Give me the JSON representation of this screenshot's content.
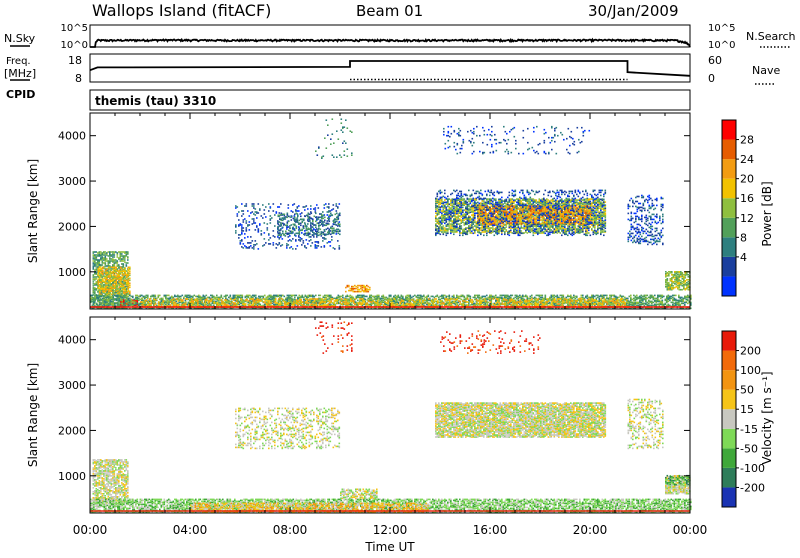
{
  "header": {
    "station": "Wallops Island (fitACF)",
    "beam": "Beam 01",
    "date": "30/Jan/2009"
  },
  "top_panels": {
    "noise": {
      "left_label": "N.Sky",
      "right_label": "N.Search",
      "left_ticks": [
        "10^5",
        "10^0"
      ],
      "right_ticks": [
        "10^5",
        "10^0"
      ]
    },
    "freq": {
      "left_label_1": "Freq.",
      "left_label_2": "[MHz]",
      "right_label": "Nave",
      "left_ticks": [
        "18",
        "8"
      ],
      "right_ticks": [
        "60",
        "0"
      ],
      "cpid_label": "CPID"
    },
    "cpid": {
      "text": "themis (tau) 3310"
    }
  },
  "panels": {
    "power": {
      "ylabel": "Slant Range [km]",
      "colorbar_label": "Power [dB]",
      "colorbar_ticks": [
        "28",
        "24",
        "20",
        "16",
        "12",
        "8",
        "4"
      ],
      "colors": [
        "#0033ff",
        "#1a3f9e",
        "#2e7f7f",
        "#52a05a",
        "#8fbf3f",
        "#f2c200",
        "#f39c12",
        "#e65c00",
        "#ff0000"
      ]
    },
    "velocity": {
      "ylabel": "Slant Range [km]",
      "colorbar_label": "Velocity [m s⁻¹]",
      "colorbar_ticks": [
        "200",
        "100",
        "50",
        "15",
        "-15",
        "-50",
        "-100",
        "-200"
      ],
      "colors": [
        "#1a33b3",
        "#2e7d5a",
        "#3fa83a",
        "#7ed957",
        "#c8c8c0",
        "#f5c418",
        "#f29412",
        "#f26a0a",
        "#e81a0a"
      ]
    }
  },
  "chart_data": [
    {
      "type": "line",
      "name": "noise",
      "x_range": [
        0,
        24
      ],
      "y_scale": "log",
      "y_range": [
        1,
        100000
      ],
      "series": [
        {
          "name": "N.Sky",
          "values_x": [
            0.0,
            0.2,
            0.3,
            1,
            3,
            6,
            9,
            12,
            15,
            18,
            21,
            23.4,
            24.0
          ],
          "values_y": [
            1,
            1,
            30,
            30,
            35,
            30,
            32,
            30,
            31,
            32,
            33,
            30,
            1
          ]
        }
      ]
    },
    {
      "type": "line",
      "name": "freq_nave",
      "x_range": [
        0,
        24
      ],
      "y_range": [
        8,
        18
      ],
      "series": [
        {
          "name": "Freq.",
          "values_x": [
            0.0,
            0.3,
            10.4,
            10.4,
            21.5,
            21.5,
            24.0
          ],
          "values_y": [
            12.2,
            13.2,
            13.4,
            15.5,
            15.5,
            11.5,
            10.2
          ]
        },
        {
          "name": "Nave",
          "values_x": [
            10.4,
            21.5
          ],
          "values_y": [
            8.9,
            8.9
          ]
        }
      ]
    },
    {
      "type": "heatmap",
      "name": "power",
      "x_range": [
        0,
        24
      ],
      "y_range": [
        180,
        4500
      ],
      "xticks": [
        "00:00",
        "04:00",
        "08:00",
        "12:00",
        "16:00",
        "20:00",
        "00:00"
      ],
      "yticks": [
        "1000",
        "2000",
        "3000",
        "4000"
      ],
      "ytick_values": [
        1000,
        2000,
        3000,
        4000
      ],
      "regions": [
        {
          "t": [
            0.1,
            1.5
          ],
          "r": [
            200,
            1450
          ],
          "level": 3,
          "density": 0.55
        },
        {
          "t": [
            0.3,
            1.6
          ],
          "r": [
            500,
            1100
          ],
          "level": 5,
          "density": 0.5
        },
        {
          "t": [
            1.2,
            1.9
          ],
          "r": [
            260,
            380
          ],
          "level": 8,
          "density": 0.9
        },
        {
          "t": [
            0.0,
            24.0
          ],
          "r": [
            190,
            480
          ],
          "level": 3,
          "density": 0.55
        },
        {
          "t": [
            2.0,
            21.5
          ],
          "r": [
            220,
            400
          ],
          "level": 5,
          "density": 0.35
        },
        {
          "t": [
            10.2,
            11.2
          ],
          "r": [
            560,
            700
          ],
          "level": 6,
          "density": 0.5
        },
        {
          "t": [
            5.8,
            10.0
          ],
          "r": [
            1500,
            2500
          ],
          "level": 1,
          "density": 0.14
        },
        {
          "t": [
            7.5,
            10.0
          ],
          "r": [
            1800,
            2300
          ],
          "level": 2,
          "density": 0.25
        },
        {
          "t": [
            13.8,
            20.6
          ],
          "r": [
            1850,
            2600
          ],
          "level": 4,
          "density": 0.55
        },
        {
          "t": [
            15.5,
            20.0
          ],
          "r": [
            2050,
            2450
          ],
          "level": 6,
          "density": 0.55
        },
        {
          "t": [
            13.8,
            20.6
          ],
          "r": [
            1800,
            2800
          ],
          "level": 1,
          "density": 0.2
        },
        {
          "t": [
            21.5,
            22.9
          ],
          "r": [
            1600,
            2700
          ],
          "level": 1,
          "density": 0.2
        },
        {
          "t": [
            23.0,
            24.0
          ],
          "r": [
            600,
            1000
          ],
          "level": 4,
          "density": 0.6
        },
        {
          "t": [
            9.0,
            10.5
          ],
          "r": [
            3500,
            4400
          ],
          "level": 2,
          "density": 0.05
        },
        {
          "t": [
            14.0,
            20.0
          ],
          "r": [
            3600,
            4200
          ],
          "level": 1,
          "density": 0.05
        }
      ]
    },
    {
      "type": "heatmap",
      "name": "velocity",
      "x_range": [
        0,
        24
      ],
      "y_range": [
        180,
        4500
      ],
      "xticks": [
        "00:00",
        "04:00",
        "08:00",
        "12:00",
        "16:00",
        "20:00",
        "00:00"
      ],
      "xlabel": "Time UT",
      "yticks": [
        "1000",
        "2000",
        "3000",
        "4000"
      ],
      "ytick_values": [
        1000,
        2000,
        3000,
        4000
      ],
      "regions": [
        {
          "t": [
            0.1,
            1.5
          ],
          "r": [
            400,
            1350
          ],
          "level": 4,
          "density": 0.6
        },
        {
          "t": [
            0.0,
            24.0
          ],
          "r": [
            190,
            480
          ],
          "level": 3,
          "density": 0.6
        },
        {
          "t": [
            4.0,
            13.5
          ],
          "r": [
            190,
            400
          ],
          "level": 5,
          "density": 0.5
        },
        {
          "t": [
            10.0,
            11.5
          ],
          "r": [
            500,
            720
          ],
          "level": 4,
          "density": 0.6
        },
        {
          "t": [
            5.8,
            10.0
          ],
          "r": [
            1600,
            2500
          ],
          "level": 4,
          "density": 0.22
        },
        {
          "t": [
            13.8,
            20.6
          ],
          "r": [
            1850,
            2600
          ],
          "level": 4,
          "density": 0.75
        },
        {
          "t": [
            21.5,
            22.9
          ],
          "r": [
            1600,
            2700
          ],
          "level": 4,
          "density": 0.25
        },
        {
          "t": [
            23.0,
            24.0
          ],
          "r": [
            600,
            1000
          ],
          "level": 4,
          "density": 0.7
        },
        {
          "t": [
            23.0,
            24.0
          ],
          "r": [
            800,
            1000
          ],
          "level": 2,
          "density": 0.3
        },
        {
          "t": [
            14.0,
            18.0
          ],
          "r": [
            3700,
            4200
          ],
          "level": 8,
          "density": 0.08
        },
        {
          "t": [
            9.0,
            10.5
          ],
          "r": [
            3700,
            4400
          ],
          "level": 8,
          "density": 0.05
        }
      ]
    }
  ]
}
